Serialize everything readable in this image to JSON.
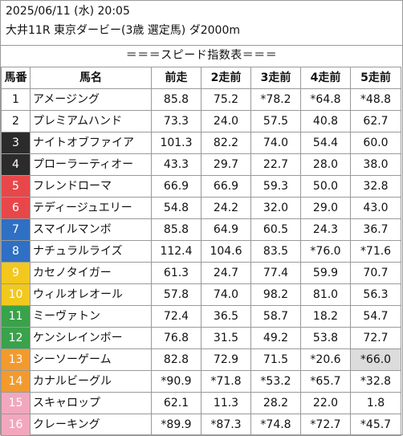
{
  "header": {
    "date_line": "2025/06/11 (水) 20:05",
    "race_line": "大井11R 東京ダービー(3歳 選定馬) ダ2000m"
  },
  "table_title": "＝＝＝スピード指数表＝＝＝",
  "columns": [
    "馬番",
    "馬名",
    "前走",
    "2走前",
    "3走前",
    "4走前",
    "5走前"
  ],
  "gate_colors": {
    "1": {
      "bg": "#ffffff",
      "fg": "#111111"
    },
    "2": {
      "bg": "#ffffff",
      "fg": "#111111"
    },
    "3": {
      "bg": "#2b2b2b",
      "fg": "#ffffff"
    },
    "4": {
      "bg": "#2b2b2b",
      "fg": "#ffffff"
    },
    "5": {
      "bg": "#e8474a",
      "fg": "#ffffff"
    },
    "6": {
      "bg": "#e8474a",
      "fg": "#ffffff"
    },
    "7": {
      "bg": "#2f6fc4",
      "fg": "#ffffff"
    },
    "8": {
      "bg": "#2f6fc4",
      "fg": "#ffffff"
    },
    "9": {
      "bg": "#f2c81e",
      "fg": "#ffffff"
    },
    "10": {
      "bg": "#f2c81e",
      "fg": "#ffffff"
    },
    "11": {
      "bg": "#3aa24a",
      "fg": "#ffffff"
    },
    "12": {
      "bg": "#3aa24a",
      "fg": "#ffffff"
    },
    "13": {
      "bg": "#f39a2e",
      "fg": "#ffffff"
    },
    "14": {
      "bg": "#f39a2e",
      "fg": "#ffffff"
    },
    "15": {
      "bg": "#f2a7bd",
      "fg": "#ffffff"
    },
    "16": {
      "bg": "#f2a7bd",
      "fg": "#ffffff"
    }
  },
  "rows": [
    {
      "no": "1",
      "name": "アメージング",
      "r1": "85.8",
      "r2": "75.2",
      "r3": "*78.2",
      "r4": "*64.8",
      "r5": "*48.8"
    },
    {
      "no": "2",
      "name": "プレミアムハンド",
      "r1": "73.3",
      "r2": "24.0",
      "r3": "57.5",
      "r4": "40.8",
      "r5": "62.7"
    },
    {
      "no": "3",
      "name": "ナイトオブファイア",
      "r1": "101.3",
      "r2": "82.2",
      "r3": "74.0",
      "r4": "54.4",
      "r5": "60.0"
    },
    {
      "no": "4",
      "name": "プローラーティオー",
      "r1": "43.3",
      "r2": "29.7",
      "r3": "22.7",
      "r4": "28.0",
      "r5": "38.0"
    },
    {
      "no": "5",
      "name": "フレンドローマ",
      "r1": "66.9",
      "r2": "66.9",
      "r3": "59.3",
      "r4": "50.0",
      "r5": "32.8"
    },
    {
      "no": "6",
      "name": "テディージュエリー",
      "r1": "54.8",
      "r2": "24.2",
      "r3": "32.0",
      "r4": "29.0",
      "r5": "43.0"
    },
    {
      "no": "7",
      "name": "スマイルマンボ",
      "r1": "85.8",
      "r2": "64.9",
      "r3": "60.5",
      "r4": "24.3",
      "r5": "36.7"
    },
    {
      "no": "8",
      "name": "ナチュラルライズ",
      "r1": "112.4",
      "r2": "104.6",
      "r3": "83.5",
      "r4": "*76.0",
      "r5": "*71.6"
    },
    {
      "no": "9",
      "name": "カセノタイガー",
      "r1": "61.3",
      "r2": "24.7",
      "r3": "77.4",
      "r4": "59.9",
      "r5": "70.7"
    },
    {
      "no": "10",
      "name": "ウィルオレオール",
      "r1": "57.8",
      "r2": "74.0",
      "r3": "98.2",
      "r4": "81.0",
      "r5": "56.3"
    },
    {
      "no": "11",
      "name": "ミーヴァトン",
      "r1": "72.4",
      "r2": "36.5",
      "r3": "58.7",
      "r4": "18.2",
      "r5": "54.7"
    },
    {
      "no": "12",
      "name": "ケンシレインボー",
      "r1": "76.8",
      "r2": "31.5",
      "r3": "49.2",
      "r4": "53.8",
      "r5": "72.7"
    },
    {
      "no": "13",
      "name": "シーソーゲーム",
      "r1": "82.8",
      "r2": "72.9",
      "r3": "71.5",
      "r4": "*20.6",
      "r5": "*66.0",
      "r5_highlight": true
    },
    {
      "no": "14",
      "name": "カナルビーグル",
      "r1": "*90.9",
      "r2": "*71.8",
      "r3": "*53.2",
      "r4": "*65.7",
      "r5": "*32.8"
    },
    {
      "no": "15",
      "name": "スキャロップ",
      "r1": "62.1",
      "r2": "11.3",
      "r3": "28.2",
      "r4": "22.0",
      "r5": "1.8"
    },
    {
      "no": "16",
      "name": "クレーキング",
      "r1": "*89.9",
      "r2": "*87.3",
      "r3": "*74.8",
      "r4": "*72.7",
      "r5": "*45.7"
    }
  ]
}
